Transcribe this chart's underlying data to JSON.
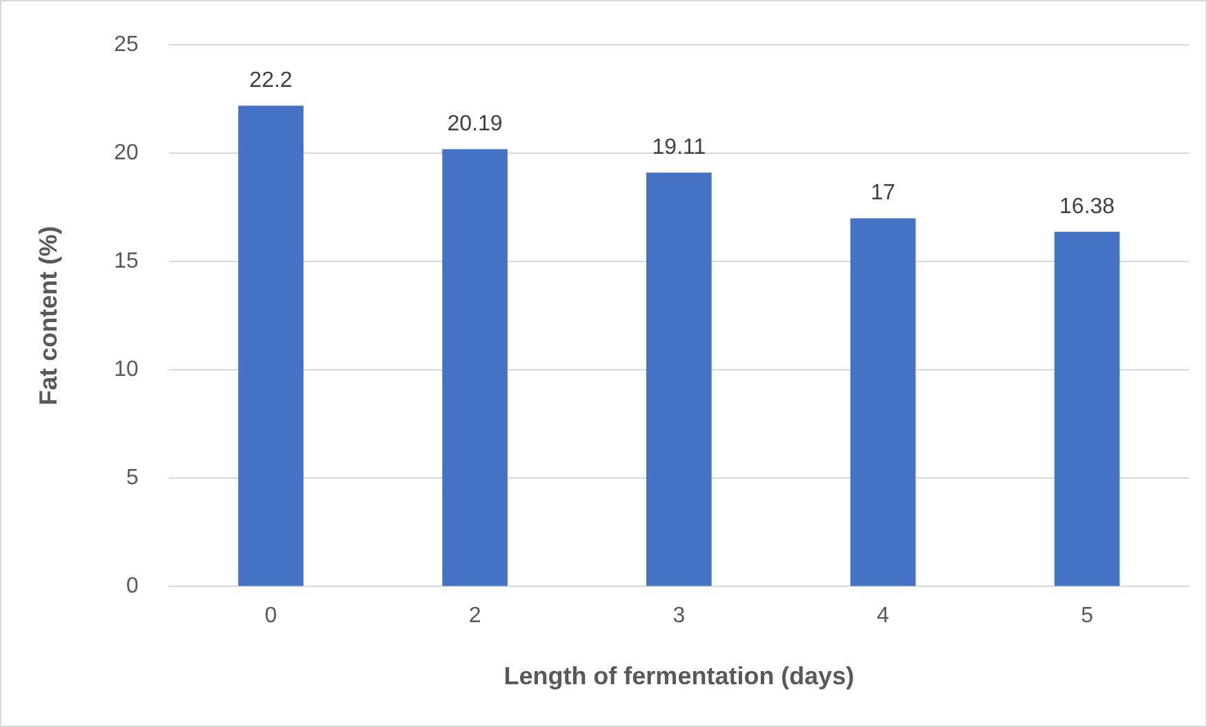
{
  "chart_data": {
    "type": "bar",
    "xlabel": "Length of fermentation (days)",
    "ylabel": "Fat content (%)",
    "categories": [
      "0",
      "2",
      "3",
      "4",
      "5"
    ],
    "values": [
      22.2,
      20.19,
      19.11,
      17,
      16.38
    ],
    "color": "#4472c4",
    "ylim": [
      0,
      25
    ],
    "yticks": [
      0,
      5,
      10,
      15,
      20,
      25
    ],
    "grid": "y",
    "data_labels": true,
    "legend": false
  }
}
